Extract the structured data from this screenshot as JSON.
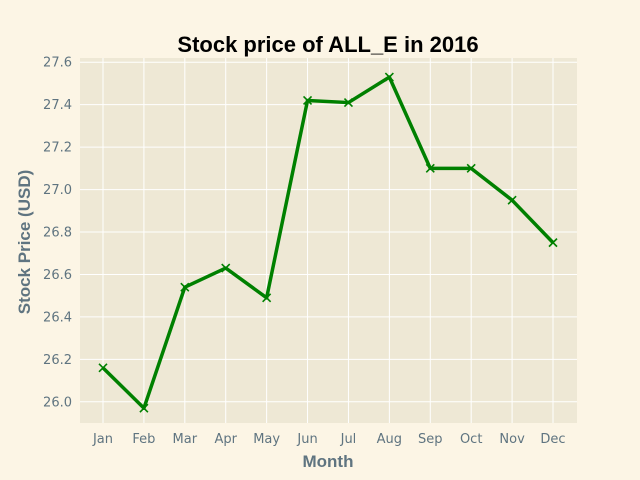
{
  "chart_data": {
    "type": "line",
    "title": "Stock price of ALL_E in 2016",
    "xlabel": "Month",
    "ylabel": "Stock Price (USD)",
    "categories": [
      "Jan",
      "Feb",
      "Mar",
      "Apr",
      "May",
      "Jun",
      "Jul",
      "Aug",
      "Sep",
      "Oct",
      "Nov",
      "Dec"
    ],
    "series": [
      {
        "values": [
          26.16,
          25.97,
          26.54,
          26.63,
          26.49,
          27.42,
          27.41,
          27.53,
          27.1,
          27.1,
          26.95,
          26.75
        ]
      }
    ],
    "yticks": [
      "26.0",
      "26.2",
      "26.4",
      "26.6",
      "26.8",
      "27.0",
      "27.2",
      "27.4",
      "27.6"
    ],
    "ylim": [
      25.9,
      27.62
    ],
    "grid": true,
    "colors": {
      "line": "#008000",
      "plot_bg": "#eee8d5",
      "figure_bg": "#fcf5e5",
      "grid": "#ffffff"
    }
  }
}
